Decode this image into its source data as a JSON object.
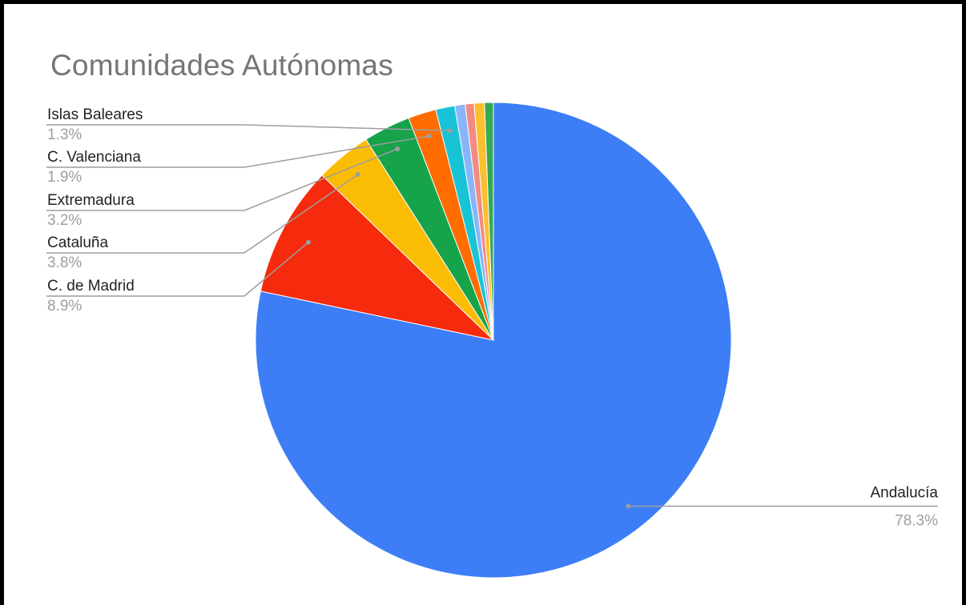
{
  "chart_data": {
    "type": "pie",
    "title": "Comunidades Autónomas",
    "slices": [
      {
        "name": "Andalucía",
        "value": 78.3,
        "pct_label": "78.3%",
        "color": "#3d7ef6",
        "labeled": true
      },
      {
        "name": "C. de Madrid",
        "value": 8.9,
        "pct_label": "8.9%",
        "color": "#f62a0c",
        "labeled": true
      },
      {
        "name": "Cataluña",
        "value": 3.8,
        "pct_label": "3.8%",
        "color": "#fbbc04",
        "labeled": true
      },
      {
        "name": "Extremadura",
        "value": 3.2,
        "pct_label": "3.2%",
        "color": "#16a34a",
        "labeled": true
      },
      {
        "name": "C. Valenciana",
        "value": 1.9,
        "pct_label": "1.9%",
        "color": "#ff6d01",
        "labeled": true
      },
      {
        "name": "Islas Baleares",
        "value": 1.3,
        "pct_label": "1.3%",
        "color": "#19c3d6",
        "labeled": true
      },
      {
        "value": 0.7,
        "color": "#8ab4f8",
        "labeled": false
      },
      {
        "value": 0.6,
        "color": "#f28b82",
        "labeled": false
      },
      {
        "value": 0.7,
        "color": "#fbc02d",
        "labeled": false
      },
      {
        "value": 0.6,
        "color": "#34a853",
        "labeled": false
      }
    ],
    "legend": "none"
  }
}
